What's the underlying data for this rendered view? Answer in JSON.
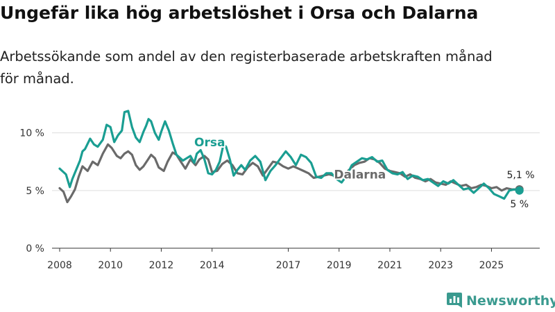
{
  "title": "Ungefär lika hög arbetslöshet i Orsa och Dalarna",
  "subtitle_lines": [
    "Arbetssökande som andel av den registerbaserade arbetskraften månad",
    "för månad."
  ],
  "brand": {
    "name": "Newsworthy",
    "color": "#3a9a8f",
    "icon": "bar-chart-icon"
  },
  "colors": {
    "orsa": "#1a9e92",
    "dalarna": "#6a6a6a",
    "grid": "#dddddd"
  },
  "chart_data": {
    "type": "line",
    "title": "Ungefär lika hög arbetslöshet i Orsa och Dalarna",
    "subtitle": "Arbetssökande som andel av den registerbaserade arbetskraften månad för månad.",
    "xlabel": "",
    "ylabel": "",
    "xlim": [
      2007.7,
      2026.9
    ],
    "ylim": [
      0,
      11
    ],
    "grid": true,
    "x_ticks": [
      2008,
      2010,
      2012,
      2014,
      2017,
      2019,
      2021,
      2023,
      2025
    ],
    "x_tick_labels": [
      "2008",
      "2010",
      "2012",
      "2014",
      "2017",
      "2019",
      "2021",
      "2023",
      "2025"
    ],
    "y_ticks": [
      0,
      5,
      10
    ],
    "y_tick_labels": [
      "0 %",
      "5 %",
      "10 %"
    ],
    "series": [
      {
        "name": "Orsa",
        "label": "Orsa",
        "x": [
          2008.0,
          2008.1,
          2008.25,
          2008.4,
          2008.5,
          2008.65,
          2008.8,
          2008.9,
          2009.0,
          2009.2,
          2009.35,
          2009.5,
          2009.7,
          2009.85,
          2010.0,
          2010.15,
          2010.3,
          2010.45,
          2010.55,
          2010.7,
          2010.85,
          2011.0,
          2011.15,
          2011.3,
          2011.4,
          2011.5,
          2011.6,
          2011.75,
          2011.9,
          2012.0,
          2012.15,
          2012.3,
          2012.45,
          2012.6,
          2012.75,
          2012.85,
          2013.0,
          2013.15,
          2013.3,
          2013.4,
          2013.55,
          2013.7,
          2013.85,
          2014.0,
          2014.15,
          2014.3,
          2014.45,
          2014.55,
          2014.7,
          2014.85,
          2015.0,
          2015.15,
          2015.3,
          2015.5,
          2015.7,
          2015.9,
          2016.1,
          2016.3,
          2016.5,
          2016.7,
          2016.9,
          2017.1,
          2017.3,
          2017.5,
          2017.7,
          2017.9,
          2018.1,
          2018.3,
          2018.5,
          2018.7,
          2018.9,
          2019.1,
          2019.3,
          2019.5,
          2019.7,
          2019.9,
          2020.1,
          2020.3,
          2020.5,
          2020.7,
          2020.9,
          2021.1,
          2021.3,
          2021.5,
          2021.7,
          2021.9,
          2022.1,
          2022.3,
          2022.5,
          2022.7,
          2022.9,
          2023.1,
          2023.3,
          2023.5,
          2023.7,
          2023.9,
          2024.1,
          2024.3,
          2024.5,
          2024.7,
          2024.9,
          2025.1,
          2025.3,
          2025.5,
          2025.7,
          2025.9,
          2026.1
        ],
        "y": [
          6.9,
          6.7,
          6.4,
          5.3,
          6.0,
          6.8,
          7.6,
          8.4,
          8.6,
          9.5,
          9.0,
          8.8,
          9.4,
          10.7,
          10.5,
          9.2,
          9.8,
          10.2,
          11.8,
          11.9,
          10.5,
          9.6,
          9.2,
          10.1,
          10.6,
          11.2,
          11.0,
          10.0,
          9.4,
          10.1,
          11.0,
          10.2,
          9.1,
          8.1,
          7.8,
          7.6,
          7.8,
          8.0,
          7.4,
          8.2,
          8.5,
          7.7,
          6.5,
          6.4,
          6.8,
          7.5,
          9.0,
          8.8,
          7.7,
          6.3,
          6.8,
          7.2,
          6.8,
          7.6,
          8.0,
          7.5,
          5.9,
          6.7,
          7.2,
          7.8,
          8.4,
          7.9,
          7.2,
          8.1,
          7.9,
          7.4,
          6.2,
          6.1,
          6.5,
          6.5,
          6.0,
          5.7,
          6.3,
          7.2,
          7.5,
          7.8,
          7.7,
          7.9,
          7.5,
          7.6,
          6.8,
          6.5,
          6.4,
          6.6,
          6.0,
          6.3,
          6.2,
          5.9,
          6.0,
          5.7,
          5.4,
          5.8,
          5.6,
          5.9,
          5.5,
          5.1,
          5.2,
          4.8,
          5.2,
          5.6,
          5.2,
          4.7,
          4.5,
          4.3,
          5.0,
          5.1,
          5.0
        ]
      },
      {
        "name": "Dalarna",
        "label": "Dalarna",
        "x": [
          2008.0,
          2008.15,
          2008.3,
          2008.45,
          2008.6,
          2008.75,
          2008.9,
          2009.1,
          2009.3,
          2009.5,
          2009.7,
          2009.9,
          2010.05,
          2010.25,
          2010.4,
          2010.55,
          2010.7,
          2010.85,
          2011.0,
          2011.15,
          2011.3,
          2011.45,
          2011.6,
          2011.75,
          2011.9,
          2012.1,
          2012.25,
          2012.45,
          2012.6,
          2012.8,
          2012.95,
          2013.15,
          2013.35,
          2013.5,
          2013.7,
          2013.85,
          2014.0,
          2014.2,
          2014.4,
          2014.6,
          2014.8,
          2015.0,
          2015.2,
          2015.4,
          2015.6,
          2015.8,
          2016.0,
          2016.2,
          2016.4,
          2016.6,
          2016.8,
          2017.0,
          2017.2,
          2017.4,
          2017.6,
          2017.8,
          2018.0,
          2018.2,
          2018.4,
          2018.6,
          2018.8,
          2019.0,
          2019.2,
          2019.4,
          2019.6,
          2019.8,
          2020.0,
          2020.2,
          2020.4,
          2020.6,
          2020.8,
          2021.0,
          2021.2,
          2021.4,
          2021.6,
          2021.8,
          2022.0,
          2022.2,
          2022.4,
          2022.6,
          2022.8,
          2023.0,
          2023.2,
          2023.4,
          2023.6,
          2023.8,
          2024.0,
          2024.2,
          2024.4,
          2024.6,
          2024.8,
          2025.0,
          2025.2,
          2025.4,
          2025.6,
          2025.8,
          2026.0,
          2026.1
        ],
        "y": [
          5.2,
          4.9,
          4.0,
          4.5,
          5.1,
          6.2,
          7.1,
          6.7,
          7.5,
          7.2,
          8.2,
          9.0,
          8.7,
          8.0,
          7.8,
          8.2,
          8.4,
          8.1,
          7.2,
          6.8,
          7.1,
          7.6,
          8.1,
          7.8,
          7.0,
          6.7,
          7.5,
          8.3,
          8.1,
          7.4,
          6.9,
          7.7,
          7.2,
          7.7,
          8.0,
          7.7,
          6.6,
          6.7,
          7.3,
          7.6,
          7.2,
          6.5,
          6.4,
          7.0,
          7.4,
          7.1,
          6.3,
          6.9,
          7.5,
          7.4,
          7.1,
          6.9,
          7.1,
          6.9,
          6.7,
          6.5,
          6.1,
          6.2,
          6.3,
          6.4,
          6.3,
          6.1,
          6.4,
          6.8,
          7.2,
          7.4,
          7.5,
          7.8,
          7.7,
          7.4,
          6.9,
          6.7,
          6.6,
          6.5,
          6.2,
          6.4,
          6.1,
          6.0,
          5.8,
          6.0,
          5.7,
          5.6,
          5.5,
          5.8,
          5.6,
          5.4,
          5.5,
          5.2,
          5.3,
          5.5,
          5.4,
          5.2,
          5.3,
          5.0,
          5.2,
          5.1,
          5.1,
          5.1
        ]
      }
    ],
    "end_labels": {
      "dalarna": "5,1 %",
      "orsa": "5 %"
    }
  }
}
